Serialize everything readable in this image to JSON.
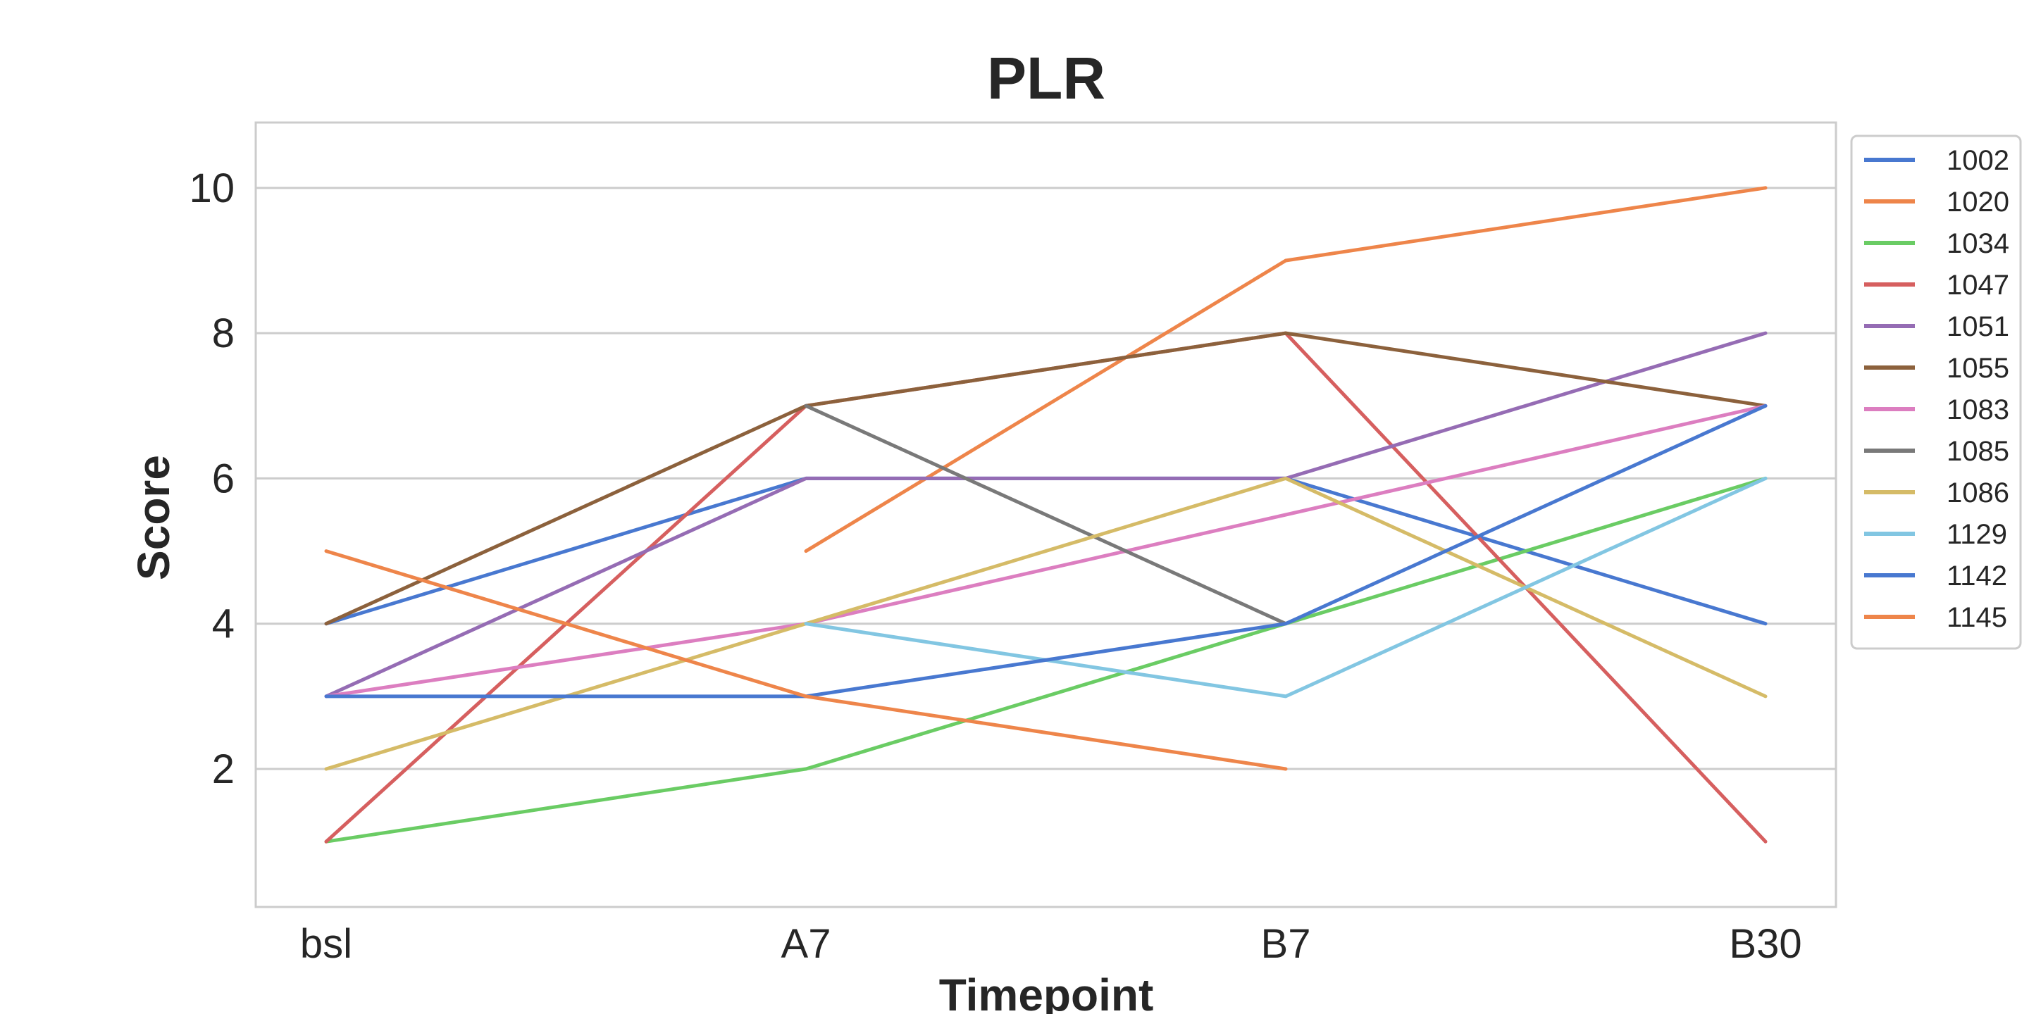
{
  "chart_data": {
    "type": "line",
    "title": "PLR",
    "xlabel": "Timepoint",
    "ylabel": "Score",
    "categories": [
      "bsl",
      "A7",
      "B7",
      "B30"
    ],
    "yticks": [
      2,
      4,
      6,
      8,
      10
    ],
    "ylim": [
      0.1,
      10.9
    ],
    "grid": true,
    "legend_position": "outside-right",
    "series": [
      {
        "name": "1002",
        "color": "#4878d0",
        "values": [
          4,
          6,
          6,
          4
        ]
      },
      {
        "name": "1020",
        "color": "#ee854a",
        "values": [
          null,
          5,
          9,
          10
        ]
      },
      {
        "name": "1034",
        "color": "#6acc64",
        "values": [
          1,
          2,
          4,
          6
        ]
      },
      {
        "name": "1047",
        "color": "#d65f5f",
        "values": [
          1,
          7,
          8,
          1
        ]
      },
      {
        "name": "1051",
        "color": "#956cb4",
        "values": [
          3,
          6,
          6,
          8
        ]
      },
      {
        "name": "1055",
        "color": "#8c613c",
        "values": [
          4,
          7,
          8,
          7
        ]
      },
      {
        "name": "1083",
        "color": "#dc7ec0",
        "values": [
          3,
          4,
          5.5,
          7
        ]
      },
      {
        "name": "1085",
        "color": "#797979",
        "values": [
          null,
          7,
          4,
          null
        ]
      },
      {
        "name": "1086",
        "color": "#d5bb67",
        "values": [
          2,
          4,
          6,
          3
        ]
      },
      {
        "name": "1129",
        "color": "#82c6e2",
        "values": [
          null,
          4,
          3,
          6
        ]
      },
      {
        "name": "1142",
        "color": "#4878d0",
        "values": [
          3,
          3,
          4,
          7
        ]
      },
      {
        "name": "1145",
        "color": "#ee854a",
        "values": [
          5,
          3,
          2,
          null
        ]
      }
    ]
  }
}
